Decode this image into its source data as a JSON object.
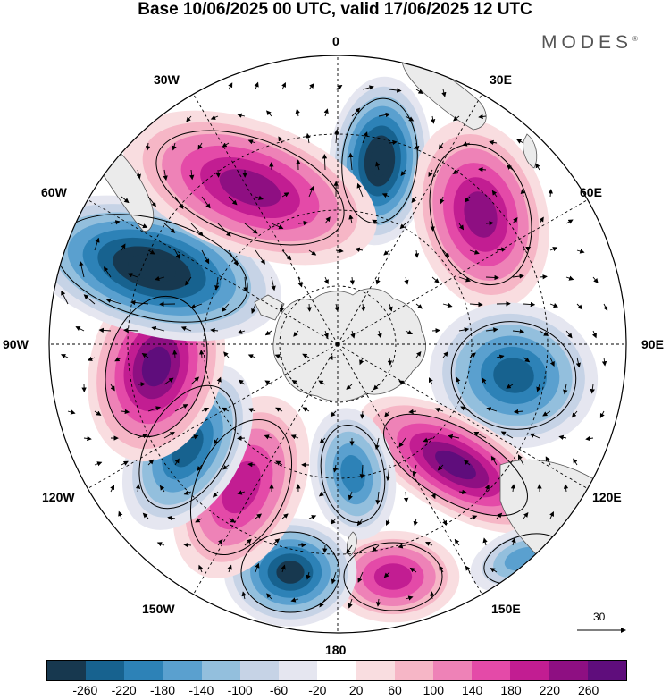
{
  "title": "Base 10/06/2025 00 UTC, valid 17/06/2025 12 UTC",
  "brand": "MODES",
  "brand_mark": "®",
  "longitude_labels": {
    "n0": "0",
    "e30": "30E",
    "e60": "60E",
    "e90": "90E",
    "e120": "120E",
    "e150": "150E",
    "s180": "180",
    "w150": "150W",
    "w120": "120W",
    "w90": "90W",
    "w60": "60W",
    "w30": "30W"
  },
  "wind_scale": {
    "value": "30"
  },
  "colorbar": {
    "tick_labels": [
      "-260",
      "-220",
      "-180",
      "-140",
      "-100",
      "-60",
      "-20",
      "20",
      "60",
      "100",
      "140",
      "180",
      "220",
      "260"
    ],
    "colors": [
      "#17384f",
      "#17628f",
      "#2d82b7",
      "#5aa0cf",
      "#93bfdd",
      "#c6d3e6",
      "#e5e6f0",
      "#ffffff",
      "#f9dde0",
      "#f6b6c6",
      "#ee82b7",
      "#e44aa8",
      "#c21d92",
      "#8e0f82",
      "#5f0d7c"
    ]
  },
  "map_features": {
    "land_color": "#ebebeb",
    "anomalies": [
      {
        "name": "neg-0-south-atlantic",
        "sign": "negative",
        "peak_class": -260
      },
      {
        "name": "pos-45e",
        "sign": "positive",
        "peak_class": 180
      },
      {
        "name": "neg-100e",
        "sign": "negative",
        "peak_class": -180
      },
      {
        "name": "pos-125e",
        "sign": "positive",
        "peak_class": 220
      },
      {
        "name": "pos-160e",
        "sign": "positive",
        "peak_class": 140
      },
      {
        "name": "neg-170w",
        "sign": "negative",
        "peak_class": -220
      },
      {
        "name": "neg-180",
        "sign": "negative",
        "peak_class": -140
      },
      {
        "name": "pos-150w",
        "sign": "positive",
        "peak_class": 140
      },
      {
        "name": "neg-130w",
        "sign": "negative",
        "peak_class": -180
      },
      {
        "name": "pos-100w",
        "sign": "positive",
        "peak_class": 220
      },
      {
        "name": "neg-70w",
        "sign": "negative",
        "peak_class": -260
      },
      {
        "name": "pos-40w",
        "sign": "positive",
        "peak_class": 180
      },
      {
        "name": "neg-140e",
        "sign": "negative",
        "peak_class": -100
      }
    ]
  }
}
